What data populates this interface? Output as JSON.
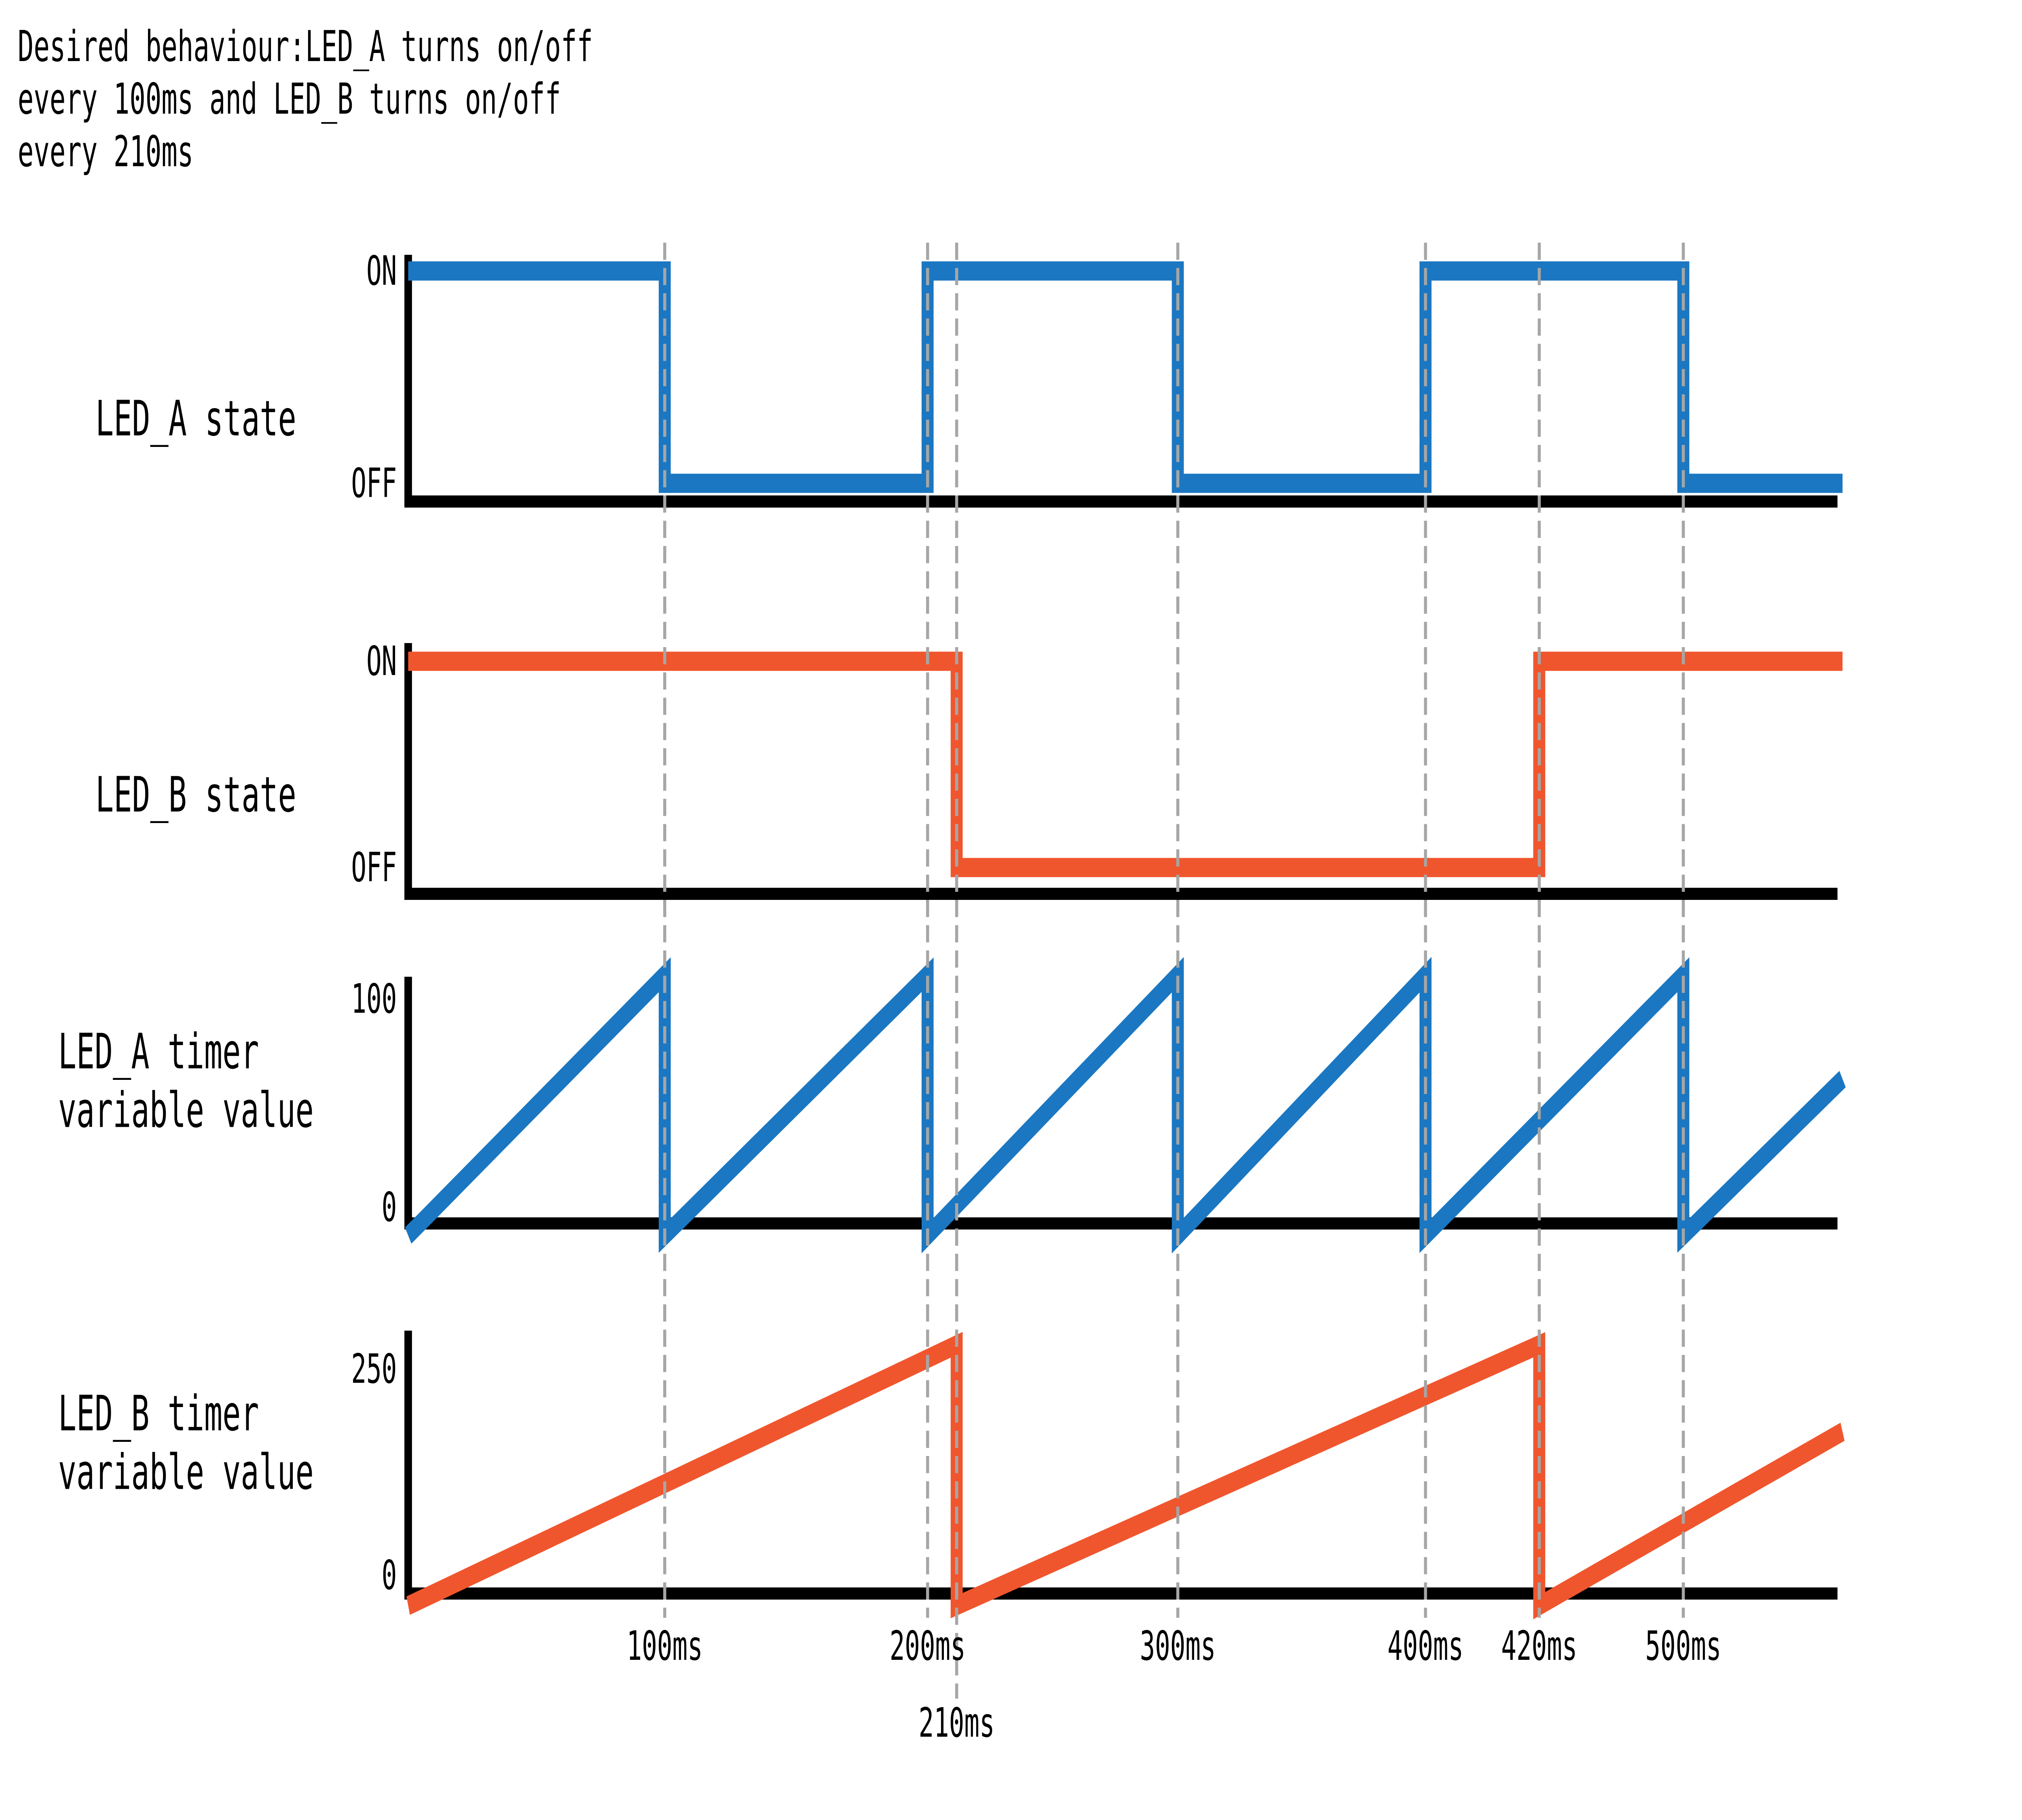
{
  "title": {
    "line1": "Desired  behaviour:LED_A turns on/off",
    "line2": "every 100ms and LED_B turns on/off",
    "line3": "every 210ms"
  },
  "colors": {
    "led_a": "#1B77C1",
    "led_b": "#F0562D",
    "gridline": "#A6A6A6",
    "axis": "#000000",
    "background": "#FFFFFF"
  },
  "panels": [
    {
      "label": "LED_A state",
      "yticks": [
        "ON",
        "OFF"
      ]
    },
    {
      "label": "LED_B state",
      "yticks": [
        "ON",
        "OFF"
      ]
    },
    {
      "label_line1": "LED_A timer",
      "label_line2": "variable value",
      "yticks": [
        "100",
        "0"
      ]
    },
    {
      "label_line1": "LED_B timer",
      "label_line2": "variable value",
      "yticks": [
        "250",
        "0"
      ]
    }
  ],
  "x_axis": {
    "ticks_row1": [
      {
        "time_ms": 100,
        "label": "100ms"
      },
      {
        "time_ms": 200,
        "label": "200ms"
      },
      {
        "time_ms": 300,
        "label": "300ms"
      },
      {
        "time_ms": 400,
        "label": "400ms"
      },
      {
        "time_ms": 420,
        "label": "420ms"
      },
      {
        "time_ms": 500,
        "label": "500ms"
      }
    ],
    "ticks_row2": [
      {
        "time_ms": 210,
        "label": "210ms"
      }
    ]
  },
  "chart_data": {
    "type": "line",
    "x_unit": "ms",
    "x_range_ms": [
      0,
      560
    ],
    "grid": "dashed-vertical",
    "legend_position": "none",
    "gridline_times_ms": [
      100,
      200,
      210,
      300,
      400,
      420,
      500
    ],
    "panels": [
      {
        "title": "LED_A state",
        "waveform": "square",
        "y_levels": [
          "OFF",
          "ON"
        ],
        "period_ms": 100,
        "initial_state": "ON",
        "transitions": [
          {
            "t_ms": 0,
            "state": "ON"
          },
          {
            "t_ms": 100,
            "state": "OFF"
          },
          {
            "t_ms": 200,
            "state": "ON"
          },
          {
            "t_ms": 300,
            "state": "OFF"
          },
          {
            "t_ms": 400,
            "state": "ON"
          },
          {
            "t_ms": 500,
            "state": "OFF"
          }
        ]
      },
      {
        "title": "LED_B state",
        "waveform": "square",
        "y_levels": [
          "OFF",
          "ON"
        ],
        "period_ms": 210,
        "initial_state": "ON",
        "transitions": [
          {
            "t_ms": 0,
            "state": "ON"
          },
          {
            "t_ms": 210,
            "state": "OFF"
          },
          {
            "t_ms": 420,
            "state": "ON"
          }
        ]
      },
      {
        "title": "LED_A timer variable value",
        "waveform": "sawtooth",
        "period_ms": 100,
        "peak_value": 100,
        "ylim": [
          0,
          100
        ],
        "y_ticks": [
          0,
          100
        ],
        "reset_times_ms": [
          0,
          100,
          200,
          300,
          400,
          500
        ]
      },
      {
        "title": "LED_B timer variable value",
        "waveform": "sawtooth",
        "period_ms": 210,
        "peak_value": 250,
        "ylim": [
          0,
          250
        ],
        "y_ticks": [
          0,
          250
        ],
        "reset_times_ms": [
          0,
          210,
          420
        ]
      }
    ]
  }
}
